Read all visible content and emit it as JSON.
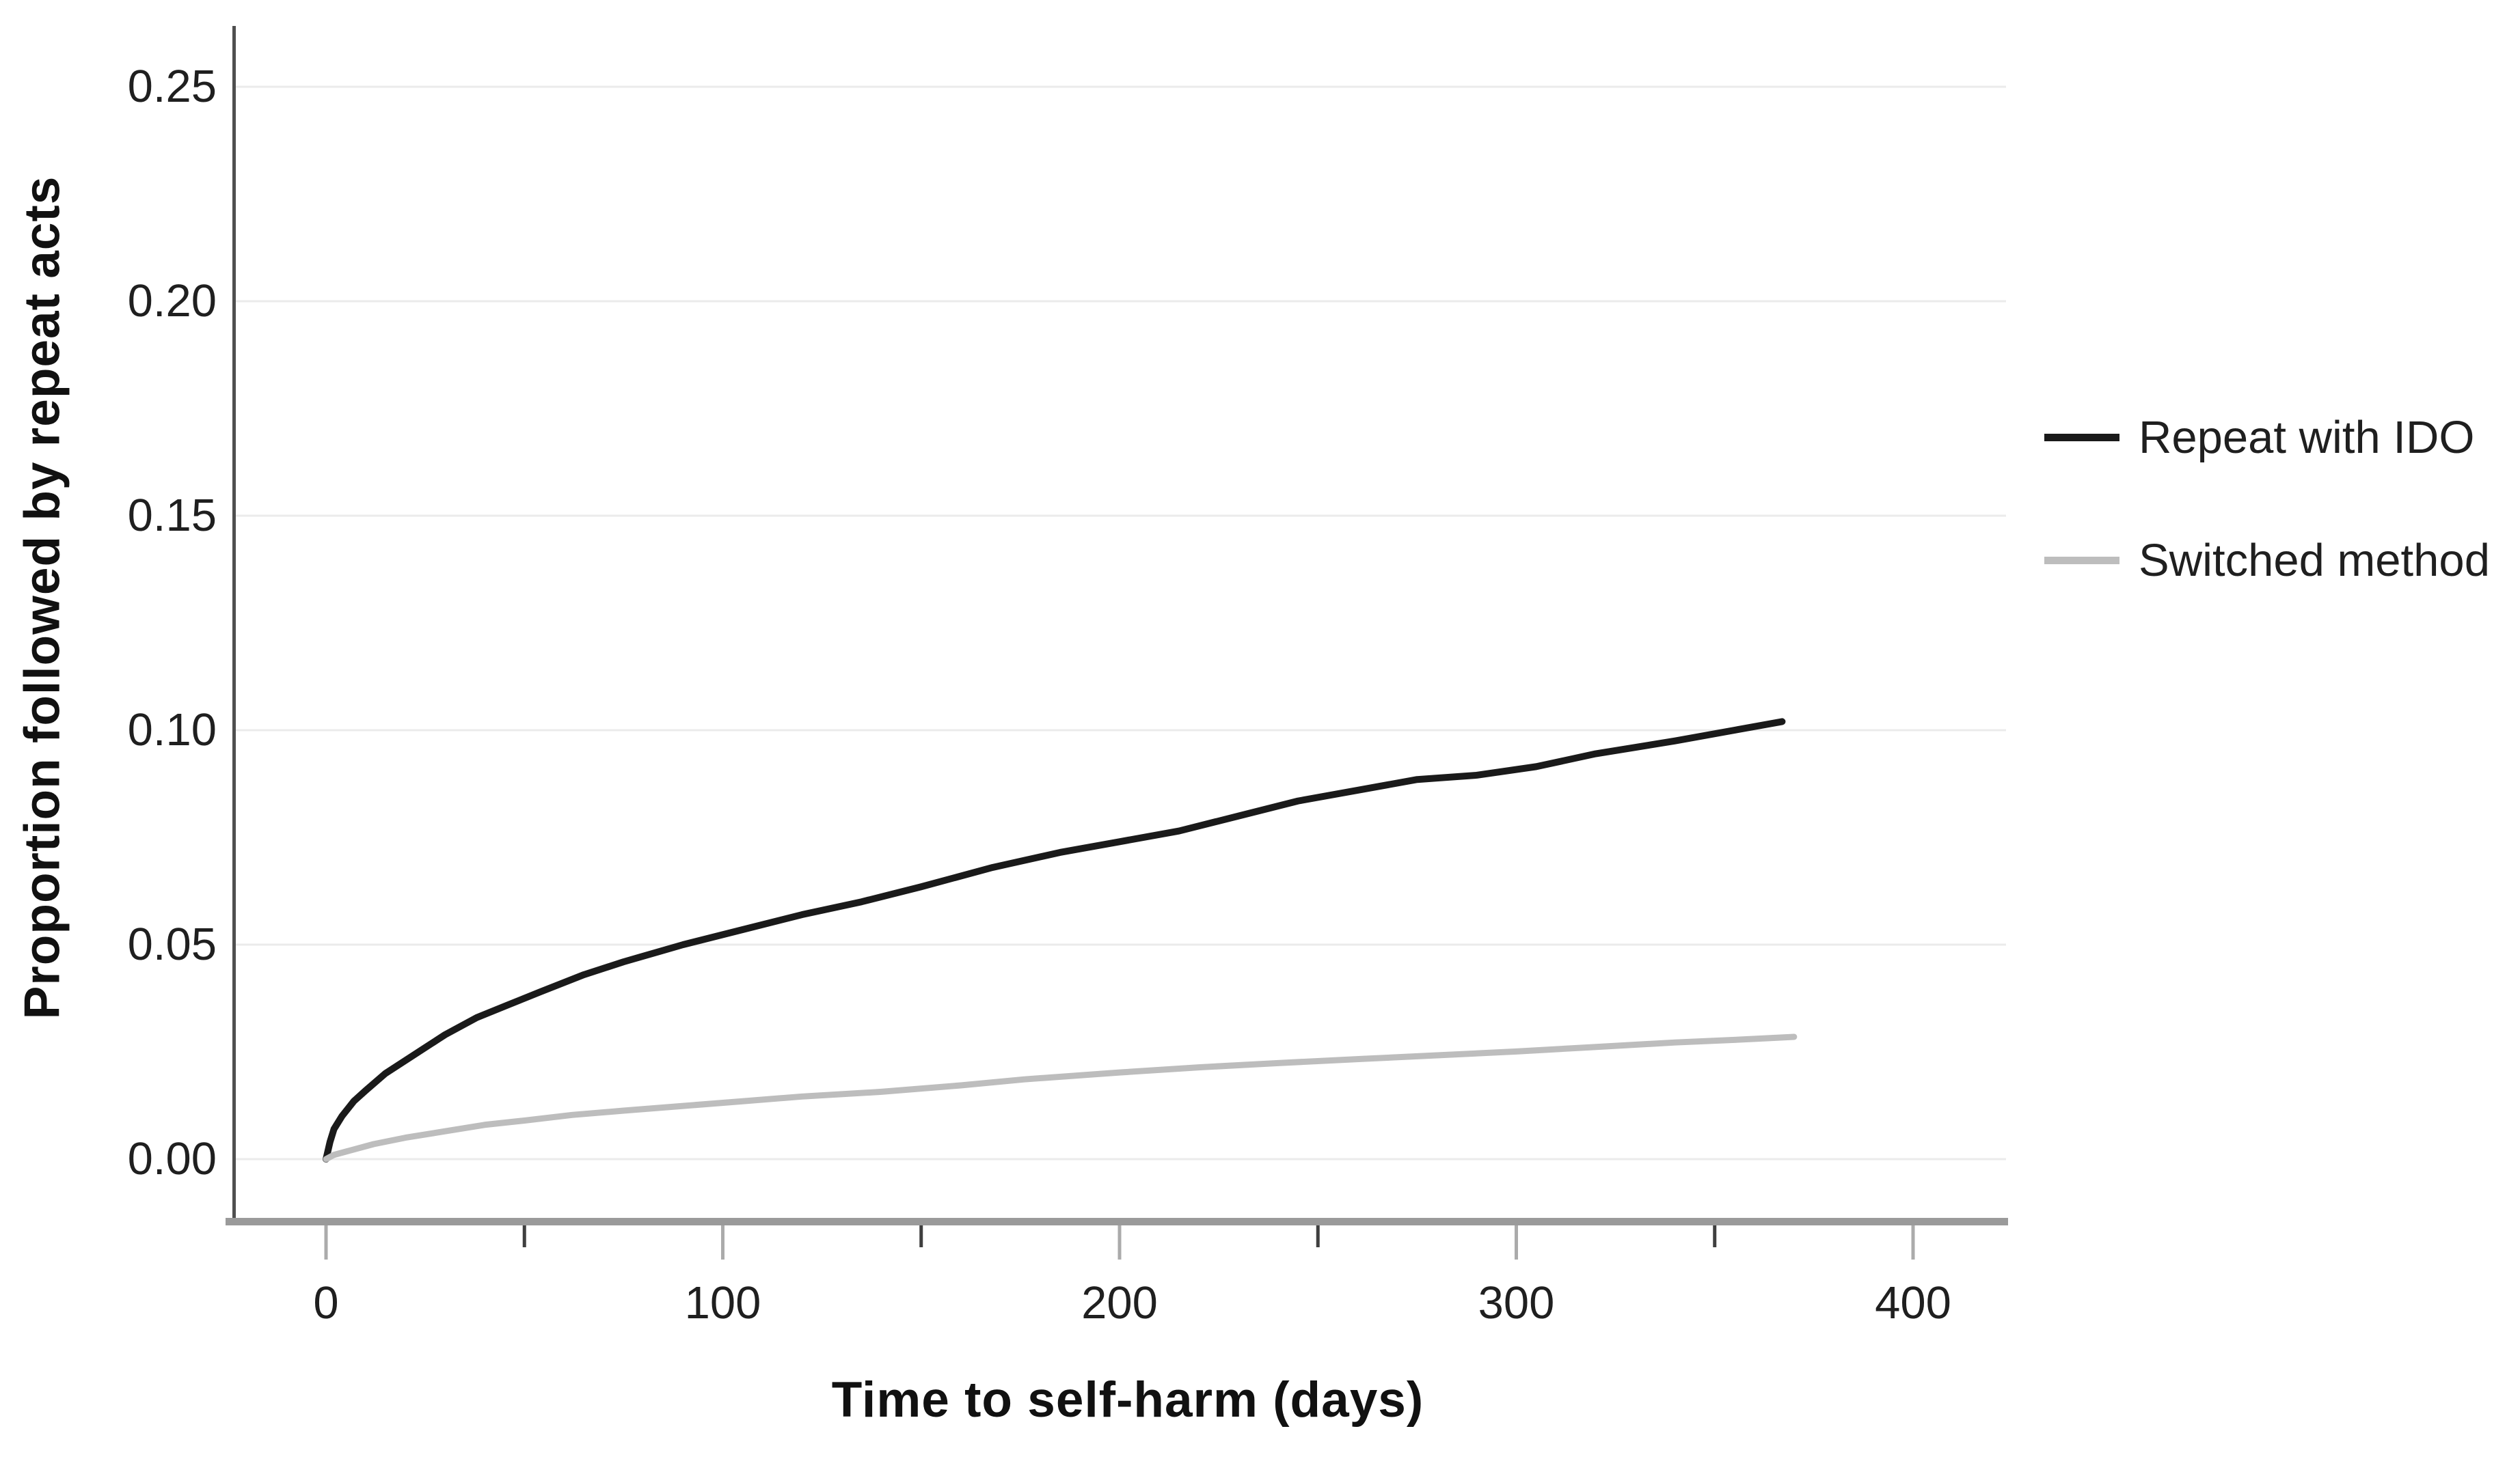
{
  "chart_data": {
    "type": "line",
    "title": "",
    "xlabel": "Time to self-harm (days)",
    "ylabel": "Proportion followed by repeat acts",
    "xlim": [
      -23,
      424
    ],
    "ylim": [
      -0.014,
      0.263
    ],
    "x_ticks": [
      0,
      100,
      200,
      300,
      400
    ],
    "x_tick_labels": [
      "0",
      "100",
      "200",
      "300",
      "400"
    ],
    "x_minor_ticks": [
      50,
      150,
      250,
      350
    ],
    "y_ticks": [
      0,
      0.05,
      0.1,
      0.15,
      0.2,
      0.25
    ],
    "y_tick_labels": [
      "0.00",
      "0.05",
      "0.10",
      "0.15",
      "0.20",
      "0.25"
    ],
    "grid": "horizontal",
    "legend_position": "right",
    "series": [
      {
        "name": "Repeat with IDO",
        "color": "#1a1a1a",
        "stroke_width": 10,
        "x": [
          0,
          1,
          2,
          4,
          7,
          10,
          15,
          20,
          25,
          30,
          38,
          46,
          54,
          65,
          75,
          90,
          105,
          120,
          135,
          150,
          168,
          185,
          200,
          215,
          230,
          245,
          260,
          275,
          290,
          305,
          320,
          340,
          355,
          367
        ],
        "y": [
          0,
          0.004,
          0.007,
          0.01,
          0.0135,
          0.016,
          0.02,
          0.023,
          0.026,
          0.029,
          0.033,
          0.036,
          0.039,
          0.043,
          0.046,
          0.05,
          0.0535,
          0.057,
          0.06,
          0.0635,
          0.068,
          0.0715,
          0.074,
          0.0765,
          0.08,
          0.0835,
          0.086,
          0.0885,
          0.0895,
          0.0915,
          0.0945,
          0.0975,
          0.1,
          0.102
        ]
      },
      {
        "name": "Switched method",
        "color": "#bdbdbd",
        "stroke_width": 9,
        "x": [
          0,
          2,
          6,
          12,
          20,
          30,
          40,
          50,
          62,
          75,
          90,
          105,
          120,
          140,
          160,
          176,
          200,
          220,
          240,
          262,
          280,
          300,
          319,
          340,
          355,
          370
        ],
        "y": [
          0,
          0.001,
          0.002,
          0.0035,
          0.005,
          0.0065,
          0.008,
          0.009,
          0.0103,
          0.0113,
          0.0124,
          0.0135,
          0.0146,
          0.0157,
          0.0172,
          0.0186,
          0.0202,
          0.0214,
          0.0224,
          0.0234,
          0.0242,
          0.0251,
          0.0261,
          0.0272,
          0.0278,
          0.0285
        ]
      }
    ]
  },
  "legend": {
    "items": [
      {
        "label": "Repeat with IDO",
        "color": "#1a1a1a"
      },
      {
        "label": "Switched method",
        "color": "#bdbdbd"
      }
    ]
  },
  "style": {
    "background": "#ffffff",
    "grid_color": "#ebebeb",
    "x_axis_color": "#9a9a9a",
    "y_axis_color": "#4f4f4f",
    "major_tick_color": "#ababab",
    "minor_tick_color": "#3f3f3f",
    "text_color": "#1f1f1f"
  }
}
